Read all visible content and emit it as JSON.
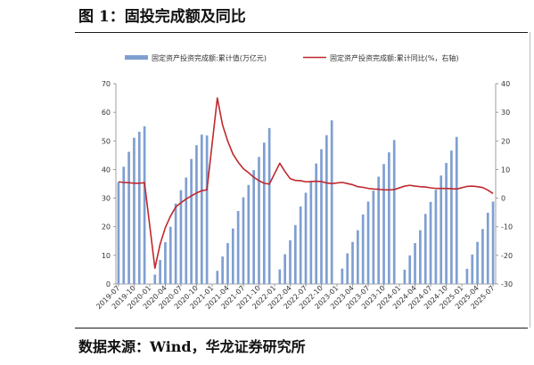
{
  "figure": {
    "title": "图 1：固投完成额及同比",
    "source": "数据来源：Wind，华龙证券研究所"
  },
  "chart_data": {
    "type": "bar+line",
    "title": "",
    "legend_position": "top",
    "grid": false,
    "series": [
      {
        "name": "固定资产投资完成额:累计值(万亿元)",
        "type": "bar",
        "axis": "left",
        "color": "#7f9fd1"
      },
      {
        "name": "固定资产投资完成额:累计同比(%，右轴)",
        "type": "line",
        "axis": "right",
        "color": "#c0282d"
      }
    ],
    "y_left": {
      "min": 0,
      "max": 70,
      "ticks": [
        0,
        10,
        20,
        30,
        40,
        50,
        60,
        70
      ]
    },
    "y_right": {
      "min": -30,
      "max": 40,
      "ticks": [
        -30,
        -20,
        -10,
        0,
        10,
        20,
        30,
        40
      ]
    },
    "x_tick_labels": [
      "2019-07",
      "2019-10",
      "2020-01",
      "2020-04",
      "2020-07",
      "2020-10",
      "2021-01",
      "2021-04",
      "2021-07",
      "2021-10",
      "2022-01",
      "2022-04",
      "2022-07",
      "2022-10",
      "2023-01",
      "2023-04",
      "2023-07",
      "2023-10",
      "2024-01",
      "2024-04",
      "2024-07",
      "2024-10",
      "2025-01",
      "2025-04",
      "2025-07"
    ],
    "months": [
      "2019-07",
      "2019-08",
      "2019-09",
      "2019-10",
      "2019-11",
      "2019-12",
      "2020-01",
      "2020-02",
      "2020-03",
      "2020-04",
      "2020-05",
      "2020-06",
      "2020-07",
      "2020-08",
      "2020-09",
      "2020-10",
      "2020-11",
      "2020-12",
      "2021-01",
      "2021-02",
      "2021-03",
      "2021-04",
      "2021-05",
      "2021-06",
      "2021-07",
      "2021-08",
      "2021-09",
      "2021-10",
      "2021-11",
      "2021-12",
      "2022-01",
      "2022-02",
      "2022-03",
      "2022-04",
      "2022-05",
      "2022-06",
      "2022-07",
      "2022-08",
      "2022-09",
      "2022-10",
      "2022-11",
      "2022-12",
      "2023-01",
      "2023-02",
      "2023-03",
      "2023-04",
      "2023-05",
      "2023-06",
      "2023-07",
      "2023-08",
      "2023-09",
      "2023-10",
      "2023-11",
      "2023-12",
      "2024-01",
      "2024-02",
      "2024-03",
      "2024-04",
      "2024-05",
      "2024-06",
      "2024-07",
      "2024-08",
      "2024-09",
      "2024-10",
      "2024-11",
      "2024-12",
      "2025-01",
      "2025-02",
      "2025-03",
      "2025-04",
      "2025-05",
      "2025-06",
      "2025-07"
    ],
    "bar_values": [
      35.6,
      41.0,
      46.2,
      51.1,
      53.2,
      55.1,
      null,
      3.3,
      8.4,
      14.6,
      20.0,
      28.1,
      32.8,
      37.2,
      43.7,
      48.5,
      52.2,
      51.9,
      null,
      4.6,
      9.6,
      14.3,
      19.4,
      25.5,
      30.3,
      34.6,
      39.8,
      44.4,
      49.4,
      54.5,
      null,
      5.1,
      10.4,
      15.3,
      20.6,
      27.1,
      31.9,
      36.0,
      42.1,
      47.1,
      52.0,
      57.2,
      null,
      5.4,
      10.7,
      14.7,
      18.8,
      24.3,
      28.8,
      32.6,
      37.5,
      41.9,
      46.0,
      50.3,
      null,
      5.0,
      10.0,
      14.3,
      18.8,
      24.5,
      28.7,
      32.9,
      37.9,
      42.3,
      46.6,
      51.4,
      null,
      5.3,
      10.3,
      14.7,
      19.2,
      24.9,
      28.8
    ],
    "line_values": [
      5.7,
      5.5,
      5.4,
      5.2,
      5.2,
      5.4,
      null,
      -24.5,
      -16.1,
      -10.3,
      -6.3,
      -3.1,
      -1.6,
      -0.3,
      0.8,
      1.8,
      2.6,
      2.9,
      null,
      35.0,
      25.6,
      19.9,
      15.4,
      12.6,
      10.3,
      8.9,
      7.3,
      6.1,
      5.2,
      4.9,
      null,
      12.2,
      9.3,
      6.8,
      6.2,
      6.1,
      5.7,
      5.8,
      5.9,
      5.8,
      5.3,
      5.1,
      null,
      5.5,
      5.1,
      4.7,
      4.0,
      3.8,
      3.4,
      3.2,
      3.1,
      2.9,
      2.9,
      3.0,
      null,
      4.2,
      4.5,
      4.2,
      4.0,
      3.9,
      3.6,
      3.4,
      3.4,
      3.4,
      3.3,
      3.2,
      null,
      4.1,
      4.2,
      4.0,
      3.7,
      2.8,
      1.6
    ]
  }
}
